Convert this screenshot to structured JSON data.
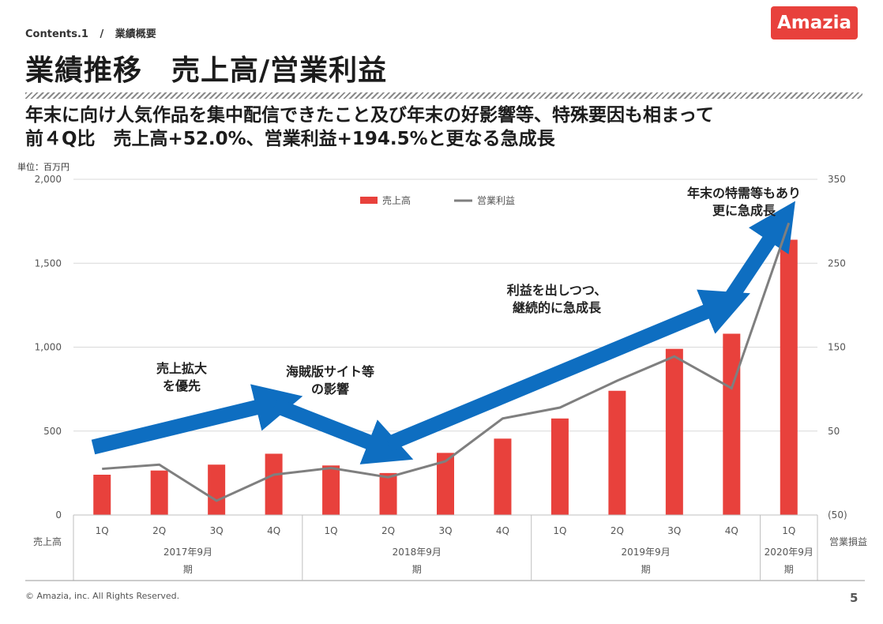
{
  "header": {
    "breadcrumb_section": "Contents.1",
    "breadcrumb_sep": "/",
    "breadcrumb_page": "業績概要",
    "logo_text": "Amazia",
    "title": "業績推移　売上高/営業利益",
    "headline_1": "年末に向け人気作品を集中配信できたこと及び年末の好影響等、特殊要因も相まって",
    "headline_2": "前４Q比　売上高+52.0%、営業利益+194.5%と更なる急成長"
  },
  "footer": {
    "copyright": "© Amazia, inc. All Rights Reserved.",
    "page_number": "5"
  },
  "colors": {
    "bar": "#e8413c",
    "line": "#7f7f7f",
    "arrow": "#0e6ec1",
    "brand": "#e8413c"
  },
  "chart_data": {
    "type": "bar",
    "unit_label": "単位：百万円",
    "categories": [
      "1Q",
      "2Q",
      "3Q",
      "4Q",
      "1Q",
      "2Q",
      "3Q",
      "4Q",
      "1Q",
      "2Q",
      "3Q",
      "4Q",
      "1Q"
    ],
    "groups": [
      {
        "label": "2017年9月期",
        "count": 4
      },
      {
        "label": "2018年9月期",
        "count": 4
      },
      {
        "label": "2019年9月期",
        "count": 4
      },
      {
        "label": "2020年9月期",
        "count": 1
      }
    ],
    "series": [
      {
        "name": "売上高",
        "axis": "left",
        "values": [
          240,
          265,
          300,
          365,
          295,
          250,
          370,
          455,
          575,
          740,
          990,
          1080,
          1640
        ]
      },
      {
        "name": "営業利益",
        "axis": "right",
        "values": [
          5,
          10,
          -33,
          -2,
          6,
          -5,
          14,
          65,
          78,
          110,
          139,
          101,
          298
        ]
      }
    ],
    "left_axis": {
      "label": "売上高",
      "ticks": [
        "0",
        "500",
        "1,000",
        "1,500",
        "2,000"
      ],
      "ylim": [
        0,
        2000
      ]
    },
    "right_axis": {
      "label": "営業損益",
      "ticks": [
        "(50)",
        "50",
        "150",
        "250",
        "350"
      ],
      "ylim": [
        -50,
        350
      ]
    },
    "legend": {
      "placement": "top-center"
    },
    "grid": true,
    "annotations": [
      {
        "text_1": "売上拡大",
        "text_2": "を優先"
      },
      {
        "text_1": "海賊版サイト等",
        "text_2": "の影響"
      },
      {
        "text_1": "利益を出しつつ、",
        "text_2": "継続的に急成長"
      },
      {
        "text_1": "年末の特需等もあり",
        "text_2": "更に急成長"
      }
    ]
  }
}
